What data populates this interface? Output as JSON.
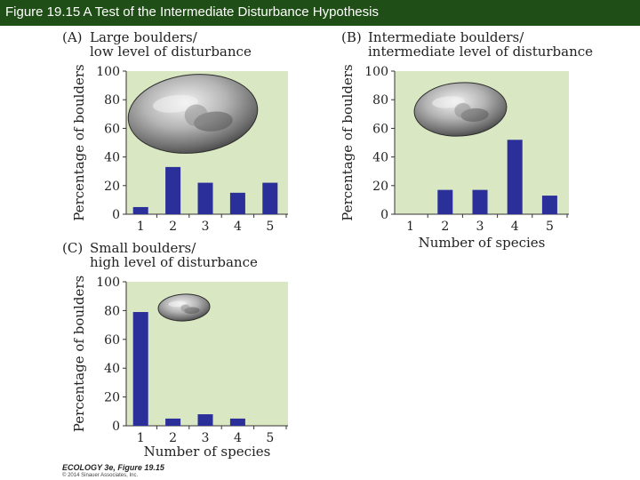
{
  "header": {
    "title": "Figure 19.15  A Test of the Intermediate Disturbance Hypothesis"
  },
  "credit": {
    "line1": "ECOLOGY 3e, Figure 19.15",
    "line2": "© 2014 Sinauer Associates, Inc."
  },
  "colors": {
    "header_bg": "#1f4e16",
    "plot_bg": "#d9e8c2",
    "bar": "#2b2f9a"
  },
  "chart_data": [
    {
      "type": "bar",
      "panel": "(A)",
      "title_line1": "Large boulders/",
      "title_line2": "low level of disturbance",
      "ylabel": "Percentage of boulders",
      "xlabel": "",
      "categories": [
        "1",
        "2",
        "3",
        "4",
        "5"
      ],
      "values": [
        5,
        33,
        22,
        15,
        22
      ],
      "ylim": [
        0,
        100
      ],
      "yticks": [
        "0",
        "20",
        "40",
        "60",
        "80",
        "100"
      ],
      "grid": false,
      "illustration": "large-boulder"
    },
    {
      "type": "bar",
      "panel": "(B)",
      "title_line1": "Intermediate boulders/",
      "title_line2": "intermediate level of disturbance",
      "ylabel": "Percentage of boulders",
      "xlabel": "Number of species",
      "categories": [
        "1",
        "2",
        "3",
        "4",
        "5"
      ],
      "values": [
        0,
        17,
        17,
        52,
        13
      ],
      "ylim": [
        0,
        100
      ],
      "yticks": [
        "0",
        "20",
        "40",
        "60",
        "80",
        "100"
      ],
      "grid": false,
      "illustration": "intermediate-boulder"
    },
    {
      "type": "bar",
      "panel": "(C)",
      "title_line1": "Small boulders/",
      "title_line2": "high level of disturbance",
      "ylabel": "Percentage of boulders",
      "xlabel": "Number of species",
      "categories": [
        "1",
        "2",
        "3",
        "4",
        "5"
      ],
      "values": [
        79,
        5,
        8,
        5,
        0
      ],
      "ylim": [
        0,
        100
      ],
      "yticks": [
        "0",
        "20",
        "40",
        "60",
        "80",
        "100"
      ],
      "grid": false,
      "illustration": "small-boulder"
    }
  ]
}
